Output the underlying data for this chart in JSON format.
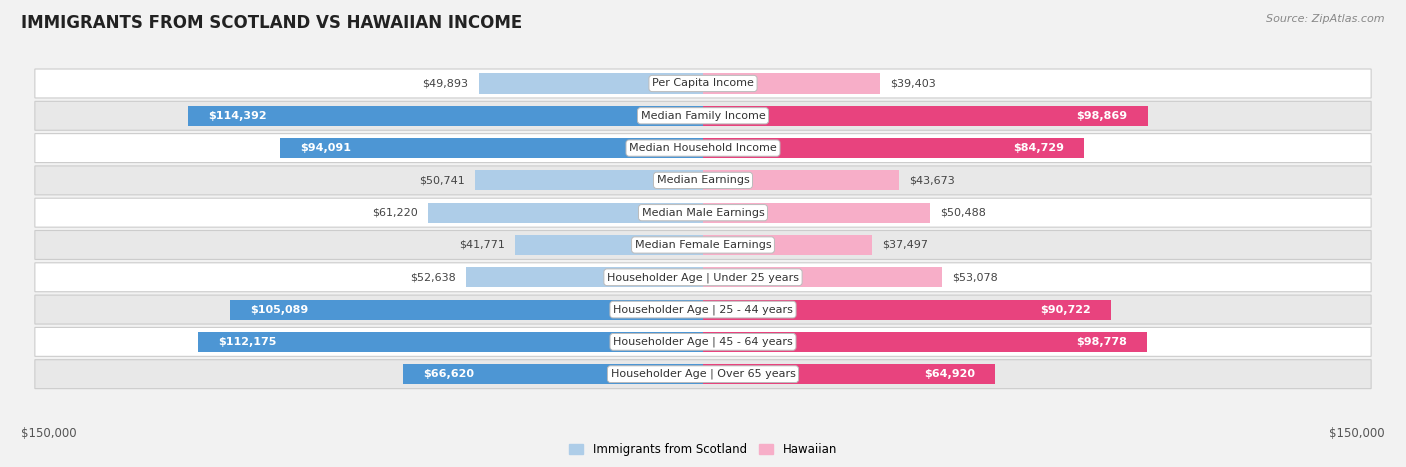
{
  "title": "IMMIGRANTS FROM SCOTLAND VS HAWAIIAN INCOME",
  "source": "Source: ZipAtlas.com",
  "categories": [
    "Per Capita Income",
    "Median Family Income",
    "Median Household Income",
    "Median Earnings",
    "Median Male Earnings",
    "Median Female Earnings",
    "Householder Age | Under 25 years",
    "Householder Age | 25 - 44 years",
    "Householder Age | 45 - 64 years",
    "Householder Age | Over 65 years"
  ],
  "scotland_values": [
    49893,
    114392,
    94091,
    50741,
    61220,
    41771,
    52638,
    105089,
    112175,
    66620
  ],
  "hawaiian_values": [
    39403,
    98869,
    84729,
    43673,
    50488,
    37497,
    53078,
    90722,
    98778,
    64920
  ],
  "scotland_labels": [
    "$49,893",
    "$114,392",
    "$94,091",
    "$50,741",
    "$61,220",
    "$41,771",
    "$52,638",
    "$105,089",
    "$112,175",
    "$66,620"
  ],
  "hawaiian_labels": [
    "$39,403",
    "$98,869",
    "$84,729",
    "$43,673",
    "$50,488",
    "$37,497",
    "$53,078",
    "$90,722",
    "$98,778",
    "$64,920"
  ],
  "scotland_light_color": "#aecde8",
  "scotland_dark_color": "#4d96d4",
  "hawaiian_light_color": "#f7aec8",
  "hawaiian_dark_color": "#e8437e",
  "max_value": 150000,
  "bar_height": 0.62,
  "background_color": "#f2f2f2",
  "row_bg_light": "#ffffff",
  "row_bg_dark": "#e8e8e8",
  "row_border_color": "#cccccc",
  "xlabel_left": "$150,000",
  "xlabel_right": "$150,000",
  "label_inside_threshold": 65000,
  "label_inside_threshold_hw": 55000
}
